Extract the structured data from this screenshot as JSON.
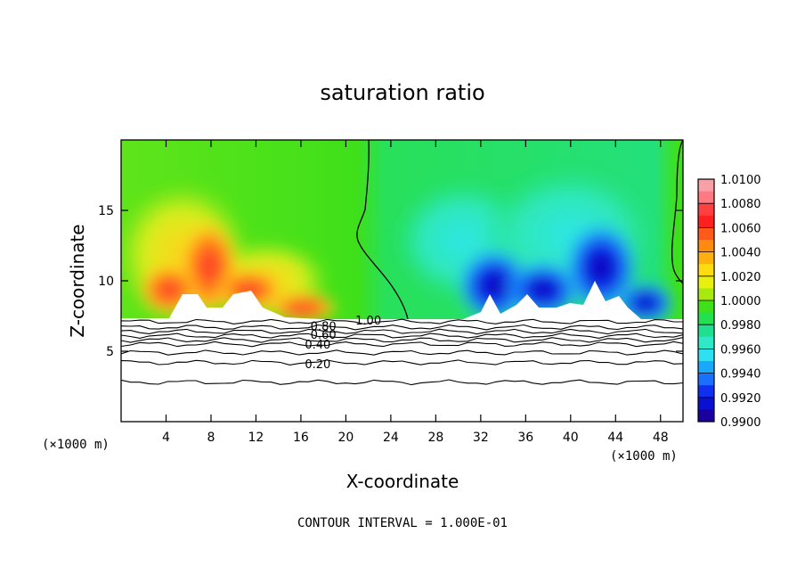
{
  "chart_data": {
    "type": "heatmap",
    "title": "saturation ratio",
    "xlabel": "X-coordinate",
    "ylabel": "Z-coordinate",
    "x_unit_left": "(×1000 m)",
    "x_unit_right": "(×1000 m)",
    "xlim": [
      0,
      50
    ],
    "ylim": [
      0,
      20
    ],
    "xticks": [
      4,
      8,
      12,
      16,
      20,
      24,
      28,
      32,
      36,
      40,
      44,
      48
    ],
    "xtick_labels": [
      "4",
      "8",
      "12",
      "16",
      "20",
      "24",
      "28",
      "32",
      "36",
      "40",
      "44",
      "48"
    ],
    "yticks": [
      5,
      10,
      15
    ],
    "ytick_labels": [
      "5",
      "10",
      "15"
    ],
    "colorbar": {
      "min": 0.99,
      "max": 1.01,
      "levels": [
        1.01,
        1.008,
        1.006,
        1.004,
        1.002,
        1.0,
        0.998,
        0.996,
        0.994,
        0.992,
        0.99
      ],
      "labels": [
        "1.0100",
        "1.0080",
        "1.0060",
        "1.0040",
        "1.0020",
        "1.0000",
        "0.9980",
        "0.9960",
        "0.9940",
        "0.9920",
        "0.9900"
      ]
    },
    "contour_labels": [
      {
        "text": "1.00",
        "x": 22,
        "z": 7.2
      },
      {
        "text": "0.80",
        "x": 18,
        "z": 6.8
      },
      {
        "text": "0.60",
        "x": 18,
        "z": 6.2
      },
      {
        "text": "0.40",
        "x": 17.5,
        "z": 5.5
      },
      {
        "text": "0.20",
        "x": 17.5,
        "z": 4.1
      }
    ],
    "contour_levels_low": [
      {
        "level": 0.9,
        "z": 7.1
      },
      {
        "level": 0.8,
        "z": 6.7
      },
      {
        "level": 0.7,
        "z": 6.4
      },
      {
        "level": 0.6,
        "z": 6.1
      },
      {
        "level": 0.5,
        "z": 5.8
      },
      {
        "level": 0.4,
        "z": 5.5
      },
      {
        "level": 0.3,
        "z": 4.9
      },
      {
        "level": 0.2,
        "z": 4.2
      },
      {
        "level": 0.1,
        "z": 2.8
      }
    ],
    "cloud_base_z": 7.2,
    "footnote": "CONTOUR INTERVAL = 1.000E-01"
  }
}
